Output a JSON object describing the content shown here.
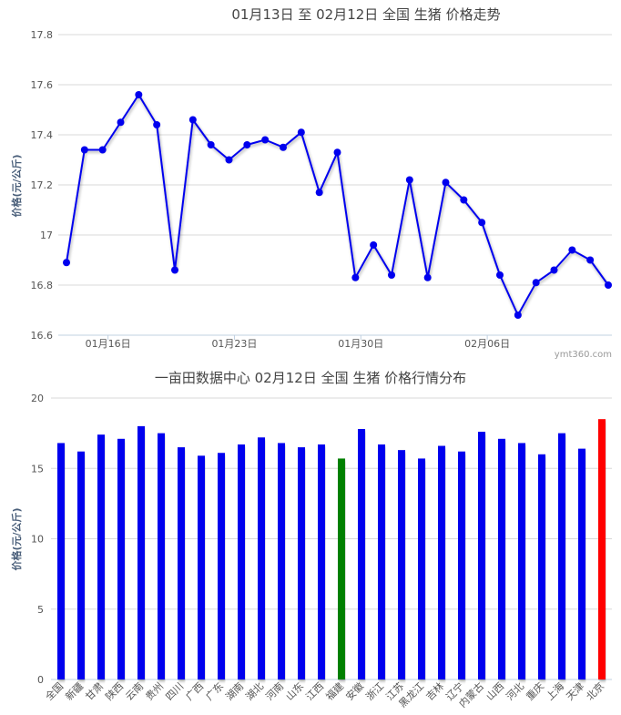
{
  "chart_data": [
    {
      "type": "line",
      "title": "01月13日  至  02月12日  全国  生猪  价格走势",
      "ylabel": "价格(元/公斤)",
      "ylim": [
        16.6,
        17.8
      ],
      "yticks": [
        "16.6",
        "16.8",
        "17",
        "17.2",
        "17.4",
        "17.6",
        "17.8"
      ],
      "x_labels": [
        {
          "label": "01月16日",
          "index": 2.3
        },
        {
          "label": "01月23日",
          "index": 9.3
        },
        {
          "label": "01月30日",
          "index": 16.3
        },
        {
          "label": "02月06日",
          "index": 23.3
        }
      ],
      "series": [
        {
          "color": "#0000ee",
          "values": [
            16.89,
            17.34,
            17.34,
            17.45,
            17.56,
            17.44,
            16.86,
            17.46,
            17.36,
            17.3,
            17.36,
            17.38,
            17.35,
            17.41,
            17.17,
            17.33,
            16.83,
            16.96,
            16.84,
            17.22,
            16.83,
            17.21,
            17.14,
            17.05,
            16.84,
            16.68,
            16.81,
            16.86,
            16.94,
            16.9,
            16.8
          ]
        }
      ],
      "credit": "ymt360.com",
      "grid": true
    },
    {
      "type": "bar",
      "title": "一亩田数据中心  02月12日  全国  生猪  价格行情分布",
      "ylabel": "价格(元/公斤)",
      "ylim": [
        0,
        20
      ],
      "yticks": [
        "0",
        "5",
        "10",
        "15",
        "20"
      ],
      "categories": [
        "全国",
        "新疆",
        "甘肃",
        "陕西",
        "云南",
        "贵州",
        "四川",
        "广西",
        "广东",
        "湖南",
        "湖北",
        "河南",
        "山东",
        "江西",
        "福建",
        "安徽",
        "浙江",
        "江苏",
        "黑龙江",
        "吉林",
        "辽宁",
        "内蒙古",
        "山西",
        "河北",
        "重庆",
        "上海",
        "天津",
        "北京"
      ],
      "values": [
        16.8,
        16.2,
        17.4,
        17.1,
        18.0,
        17.5,
        16.5,
        15.9,
        16.1,
        16.7,
        17.2,
        16.8,
        16.5,
        16.7,
        15.7,
        17.8,
        16.7,
        16.3,
        15.7,
        16.6,
        16.2,
        17.6,
        17.1,
        16.8,
        16.0,
        17.5,
        16.4,
        18.5
      ],
      "bar_colors": {
        "default": "#0000ee",
        "min": "#008000",
        "max": "#ff0000"
      },
      "grid": true
    }
  ]
}
